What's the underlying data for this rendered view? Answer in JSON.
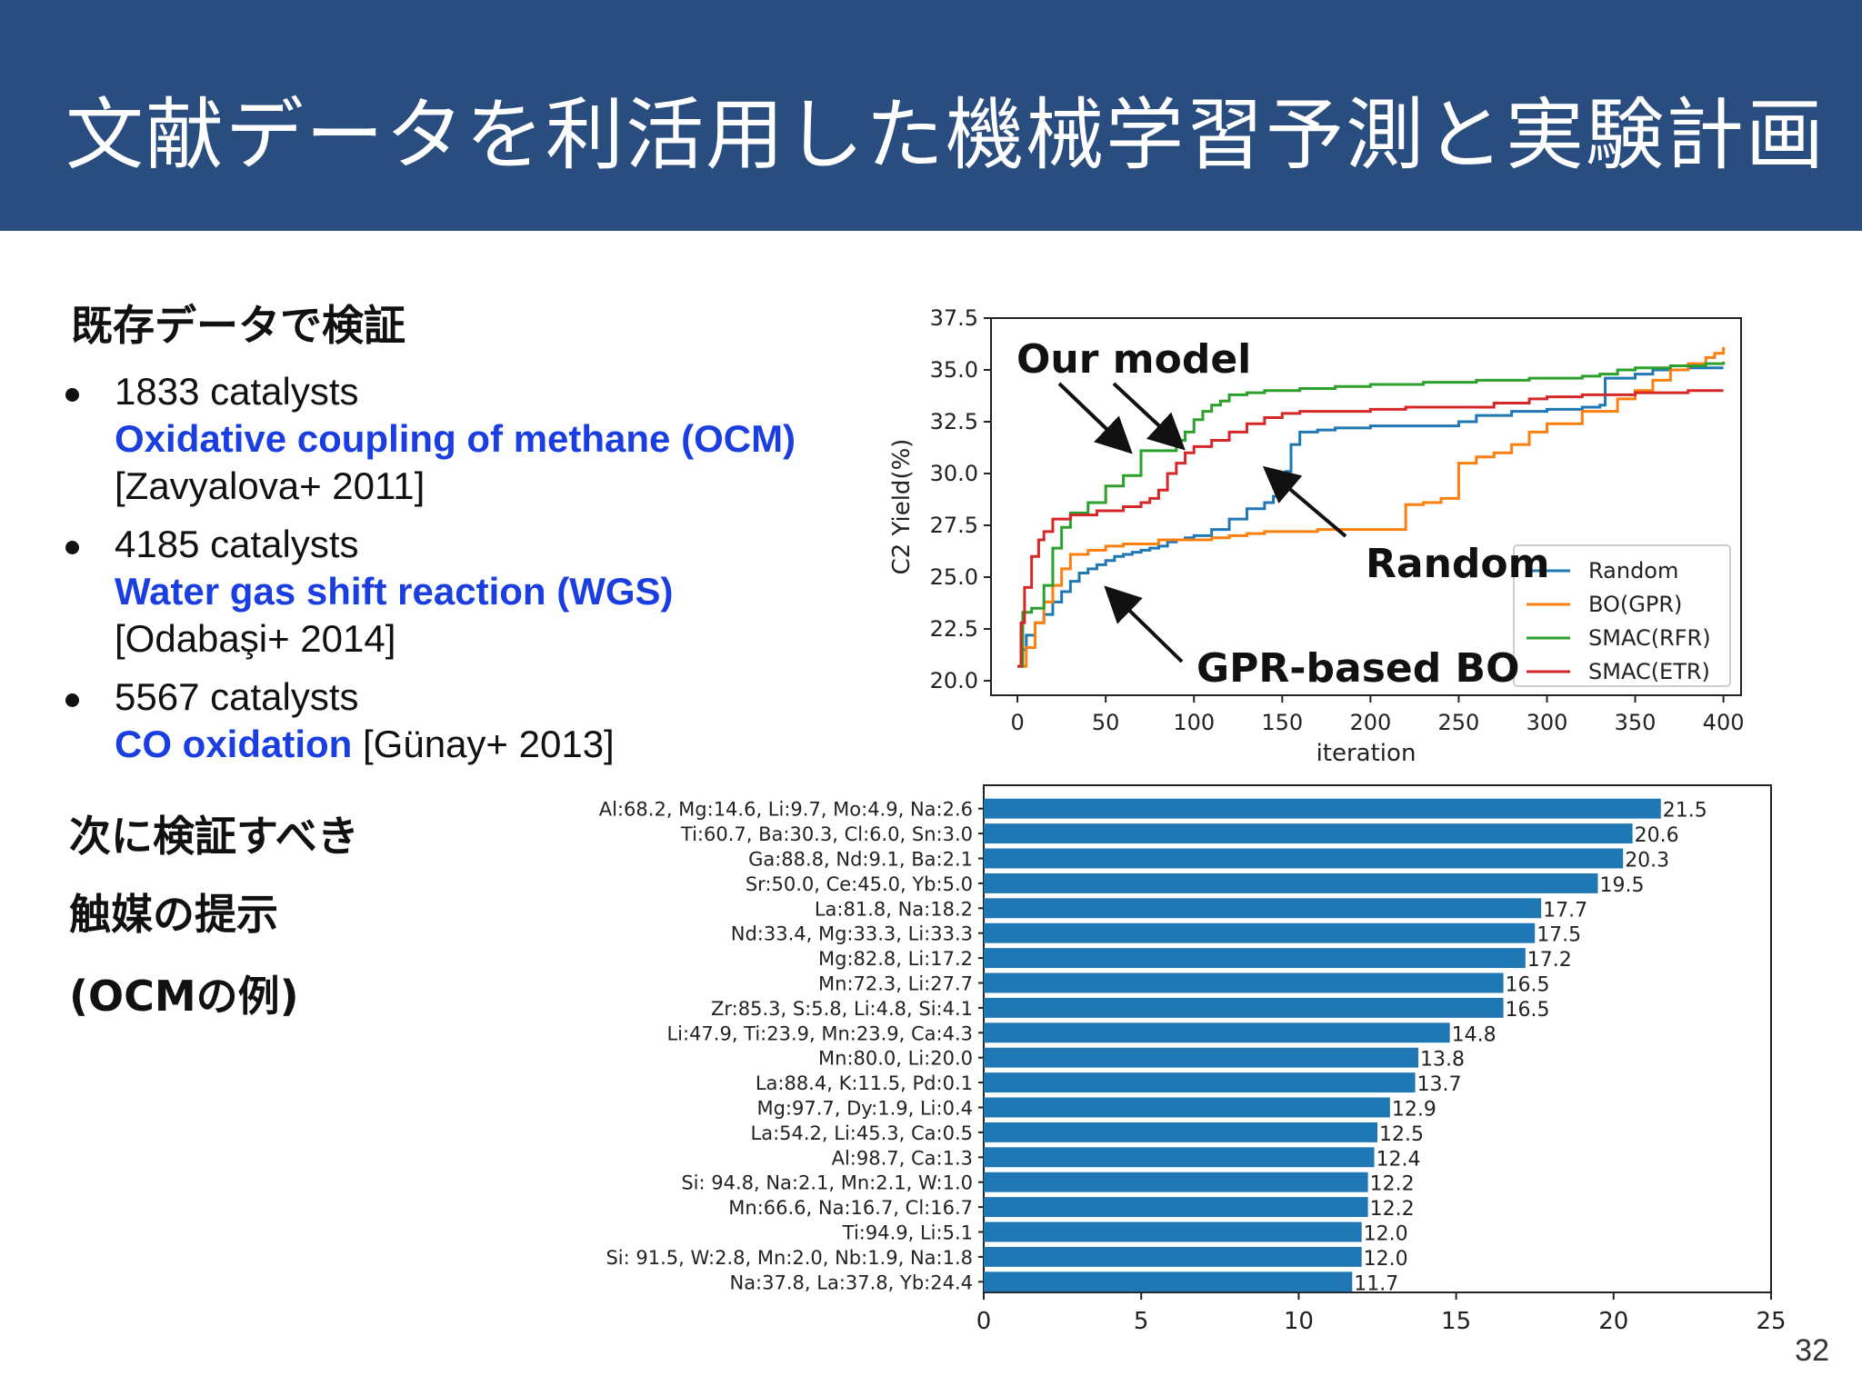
{
  "header": {
    "title": "文献データを利活用した機械学習予測と実験計画"
  },
  "section1": {
    "heading": "既存データで検証",
    "datasets": [
      {
        "count": "1833 catalysts",
        "reaction": "Oxidative coupling of methane (OCM)",
        "ref": "[Zavyalova+ 2011]"
      },
      {
        "count": "4185 catalysts",
        "reaction": "Water gas shift reaction (WGS)",
        "ref": "[Odabaşi+ 2014]"
      },
      {
        "count": "5567 catalysts",
        "reaction": "CO oxidation",
        "ref": "[Günay+ 2013]"
      }
    ]
  },
  "section2": {
    "line1": "次に検証すべき",
    "line2": "触媒の提示",
    "line3": "(OCMの例)"
  },
  "slide_number": "32",
  "colors": {
    "header_bg": "#2a4d80",
    "link_blue": "#1a3ee0",
    "bar_blue": "#1f77b4"
  },
  "chart_data": [
    {
      "type": "line",
      "xlabel": "iteration",
      "ylabel": "C2 Yield(%)",
      "xlim": [
        -15,
        410
      ],
      "ylim": [
        19.3,
        37.5
      ],
      "xticks": [
        0,
        50,
        100,
        150,
        200,
        250,
        300,
        350,
        400
      ],
      "yticks": [
        20.0,
        22.5,
        25.0,
        27.5,
        30.0,
        32.5,
        35.0,
        37.5
      ],
      "legend_position": "lower-right",
      "annotations": [
        {
          "text": "Our model"
        },
        {
          "text": "Random"
        },
        {
          "text": "GPR-based BO"
        }
      ],
      "series": [
        {
          "name": "Random",
          "color": "#1f77b4",
          "x": [
            0,
            2,
            5,
            10,
            15,
            20,
            25,
            30,
            35,
            40,
            45,
            50,
            55,
            60,
            65,
            70,
            75,
            80,
            85,
            90,
            95,
            100,
            110,
            120,
            130,
            140,
            145,
            150,
            152,
            155,
            160,
            170,
            180,
            200,
            250,
            260,
            280,
            300,
            320,
            330,
            333,
            350,
            360,
            380,
            400
          ],
          "y": [
            20.7,
            21.5,
            22.2,
            22.8,
            23.2,
            23.8,
            24.3,
            24.8,
            25.2,
            25.4,
            25.6,
            25.8,
            26.0,
            26.1,
            26.2,
            26.3,
            26.4,
            26.5,
            26.7,
            26.8,
            26.9,
            27.0,
            27.3,
            27.8,
            28.3,
            28.6,
            28.9,
            29.1,
            30.1,
            31.4,
            32.0,
            32.1,
            32.2,
            32.3,
            32.5,
            32.8,
            33.0,
            33.1,
            33.2,
            33.3,
            34.6,
            34.8,
            35.0,
            35.1,
            35.1
          ]
        },
        {
          "name": "BO(GPR)",
          "color": "#ff7f0e",
          "x": [
            0,
            5,
            10,
            15,
            20,
            25,
            30,
            40,
            50,
            60,
            70,
            80,
            90,
            100,
            110,
            120,
            130,
            140,
            150,
            160,
            170,
            180,
            190,
            200,
            220,
            230,
            240,
            250,
            260,
            270,
            280,
            290,
            300,
            320,
            340,
            350,
            360,
            370,
            380,
            390,
            395,
            400
          ],
          "y": [
            20.7,
            21.6,
            22.8,
            23.8,
            24.6,
            25.4,
            26.1,
            26.3,
            26.5,
            26.6,
            26.6,
            26.8,
            26.8,
            26.8,
            26.9,
            27.0,
            27.1,
            27.2,
            27.2,
            27.2,
            27.3,
            27.3,
            27.3,
            27.3,
            28.5,
            28.6,
            28.8,
            30.5,
            30.8,
            31.0,
            31.4,
            32.0,
            32.4,
            33.0,
            33.6,
            34.0,
            34.5,
            35.0,
            35.3,
            35.6,
            35.8,
            36.1
          ]
        },
        {
          "name": "SMAC(RFR)",
          "color": "#2ca02c",
          "x": [
            0,
            3,
            8,
            15,
            20,
            25,
            30,
            40,
            50,
            60,
            70,
            75,
            80,
            85,
            90,
            95,
            100,
            105,
            110,
            115,
            120,
            130,
            140,
            160,
            180,
            200,
            230,
            260,
            290,
            310,
            320,
            330,
            340,
            350,
            370,
            390,
            400
          ],
          "y": [
            20.7,
            23.3,
            23.5,
            24.6,
            26.4,
            27.4,
            28.1,
            28.6,
            29.4,
            29.9,
            31.1,
            31.1,
            31.1,
            31.1,
            31.6,
            32.0,
            32.6,
            33.0,
            33.3,
            33.5,
            33.8,
            33.9,
            34.0,
            34.1,
            34.2,
            34.3,
            34.4,
            34.5,
            34.6,
            34.6,
            34.7,
            34.8,
            35.0,
            35.1,
            35.2,
            35.3,
            35.4
          ]
        },
        {
          "name": "SMAC(ETR)",
          "color": "#d62728",
          "x": [
            0,
            2,
            4,
            8,
            12,
            15,
            20,
            30,
            45,
            60,
            70,
            75,
            80,
            85,
            90,
            95,
            100,
            110,
            120,
            130,
            140,
            150,
            160,
            180,
            200,
            220,
            250,
            270,
            290,
            300,
            320,
            350,
            380,
            400
          ],
          "y": [
            20.7,
            22.8,
            24.5,
            26.0,
            26.8,
            27.2,
            27.8,
            28.0,
            28.2,
            28.4,
            28.6,
            28.8,
            29.2,
            30.0,
            30.5,
            31.0,
            31.3,
            31.6,
            32.0,
            32.4,
            32.7,
            32.9,
            33.0,
            33.0,
            33.1,
            33.2,
            33.2,
            33.4,
            33.6,
            33.7,
            33.8,
            33.9,
            34.0,
            34.0
          ]
        }
      ]
    },
    {
      "type": "bar",
      "orientation": "horizontal",
      "xlim": [
        0,
        25
      ],
      "xticks": [
        0,
        5,
        10,
        15,
        20,
        25
      ],
      "categories": [
        "Al:68.2, Mg:14.6, Li:9.7, Mo:4.9, Na:2.6",
        "Ti:60.7, Ba:30.3, Cl:6.0, Sn:3.0",
        "Ga:88.8, Nd:9.1, Ba:2.1",
        "Sr:50.0, Ce:45.0, Yb:5.0",
        "La:81.8, Na:18.2",
        "Nd:33.4, Mg:33.3, Li:33.3",
        "Mg:82.8, Li:17.2",
        "Mn:72.3, Li:27.7",
        "Zr:85.3, S:5.8, Li:4.8, Si:4.1",
        "Li:47.9, Ti:23.9, Mn:23.9, Ca:4.3",
        "Mn:80.0, Li:20.0",
        "La:88.4, K:11.5, Pd:0.1",
        "Mg:97.7, Dy:1.9, Li:0.4",
        "La:54.2, Li:45.3, Ca:0.5",
        "Al:98.7, Ca:1.3",
        "Si: 94.8, Na:2.1, Mn:2.1, W:1.0",
        "Mn:66.6, Na:16.7, Cl:16.7",
        "Ti:94.9, Li:5.1",
        "Si: 91.5, W:2.8, Mn:2.0, Nb:1.9, Na:1.8",
        "Na:37.8, La:37.8, Yb:24.4"
      ],
      "values": [
        21.5,
        20.6,
        20.3,
        19.5,
        17.7,
        17.5,
        17.2,
        16.5,
        16.5,
        14.8,
        13.8,
        13.7,
        12.9,
        12.5,
        12.4,
        12.2,
        12.2,
        12.0,
        12.0,
        11.7
      ],
      "labels": [
        "21.5",
        "20.6",
        "20.3",
        "19.5",
        "17.7",
        "17.5",
        "17.2",
        "16.5",
        "16.5",
        "14.8",
        "13.8",
        "13.7",
        "12.9",
        "12.5",
        "12.4",
        "12.2",
        "12.2",
        "12.0",
        "12.0",
        "11.7"
      ]
    }
  ]
}
